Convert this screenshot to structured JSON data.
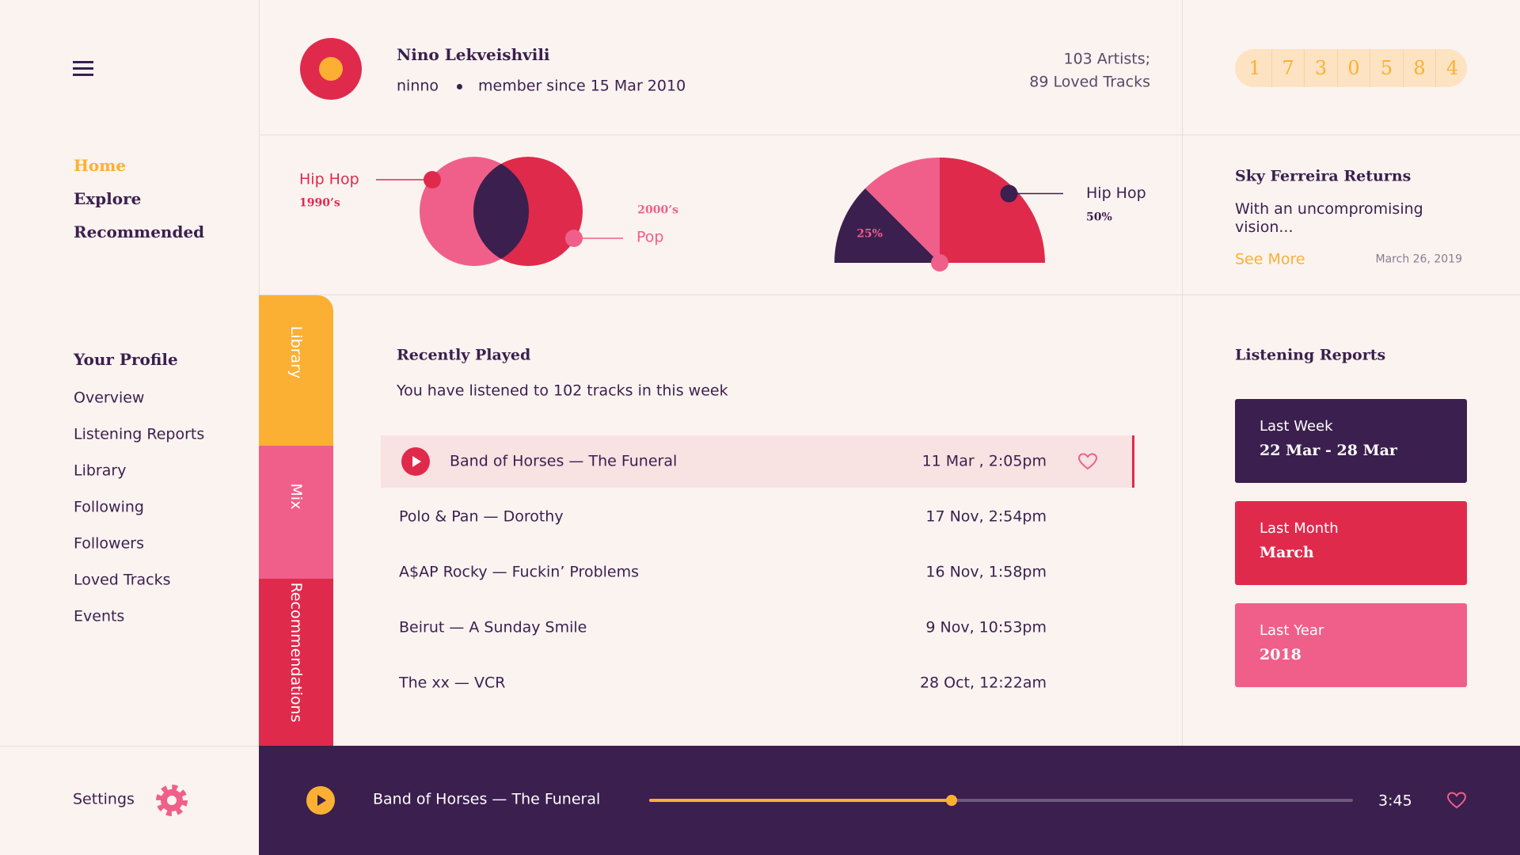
{
  "sidebar": {
    "nav": [
      "Home",
      "Explore",
      "Recommended"
    ],
    "profile_title": "Your Profile",
    "profile_links": [
      "Overview",
      "Listening Reports",
      "Library",
      "Following",
      "Followers",
      "Loved Tracks",
      "Events"
    ],
    "settings": "Settings"
  },
  "header": {
    "name": "Nino Lekveishvili",
    "username": "ninno",
    "member_since": "member since 15 Mar 2010",
    "artists": "103 Artists;",
    "loved": "89 Loved Tracks",
    "counter": [
      1,
      7,
      3,
      0,
      5,
      8,
      4
    ]
  },
  "genres": {
    "venn": {
      "left": {
        "name": "Hip Hop",
        "era": "1990’s"
      },
      "right": {
        "name": "Pop",
        "era": "2000’s"
      }
    },
    "gauge": {
      "segments": [
        {
          "value": 25,
          "label": "25%",
          "color": "#3b1f4e"
        },
        {
          "value": 25,
          "color": "#ef5f8a"
        },
        {
          "value": 50,
          "name": "Hip Hop",
          "label": "50%",
          "color": "#e02a4c"
        }
      ]
    }
  },
  "news": {
    "title": "Sky Ferreira Returns",
    "body": "With an uncompromising vision...",
    "link": "See More",
    "date": "March 26, 2019"
  },
  "tabs": [
    "Library",
    "Mix",
    "Recommendations"
  ],
  "recent": {
    "title": "Recently Played",
    "subtitle": "You have listened to 102 tracks in this week",
    "tracks": [
      {
        "title": "Band of Horses — The Funeral",
        "time": "11 Mar , 2:05pm"
      },
      {
        "title": "Polo & Pan — Dorothy",
        "time": "17 Nov, 2:54pm"
      },
      {
        "title": "A$AP Rocky — Fuckin’ Problems",
        "time": "16 Nov, 1:58pm"
      },
      {
        "title": "Beirut — A Sunday Smile",
        "time": "9 Nov, 10:53pm"
      },
      {
        "title": "The xx — VCR",
        "time": "28 Oct, 12:22am"
      }
    ]
  },
  "reports": {
    "title": "Listening Reports",
    "cards": [
      {
        "label": "Last Week",
        "range": "22 Mar - 28 Mar"
      },
      {
        "label": "Last Month",
        "range": "March"
      },
      {
        "label": "Last Year",
        "range": "2018"
      }
    ]
  },
  "player": {
    "track": "Band of Horses — The Funeral",
    "duration": "3:45"
  }
}
